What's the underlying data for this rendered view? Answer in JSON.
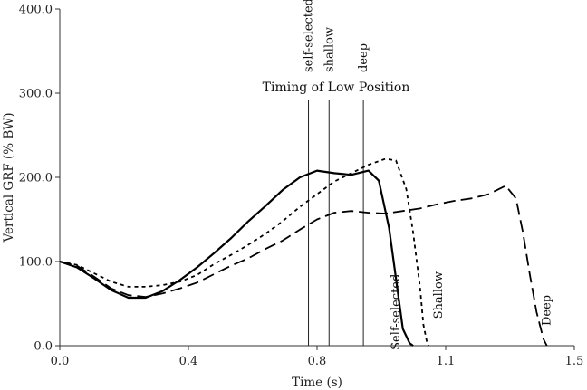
{
  "chart_data": {
    "type": "line",
    "title": "",
    "xlabel": "Time (s)",
    "ylabel": "Vertical GRF (% BW)",
    "xlim": [
      0.0,
      1.5
    ],
    "ylim": [
      0.0,
      400.0
    ],
    "x_ticks": [
      {
        "value": 0.0,
        "label": "0.0"
      },
      {
        "value": 0.375,
        "label": "0.4"
      },
      {
        "value": 0.75,
        "label": "0.8"
      },
      {
        "value": 1.125,
        "label": "1.1"
      },
      {
        "value": 1.5,
        "label": "1.5"
      }
    ],
    "y_ticks": [
      {
        "value": 0,
        "label": "0.0"
      },
      {
        "value": 100,
        "label": "100.0"
      },
      {
        "value": 200,
        "label": "200.0"
      },
      {
        "value": 300,
        "label": "300.0"
      },
      {
        "value": 400,
        "label": "400.0"
      }
    ],
    "vertical_markers_title": "Timing of Low Position",
    "vertical_markers": [
      {
        "name": "self-selected",
        "x": 0.725
      },
      {
        "name": "shallow",
        "x": 0.785
      },
      {
        "name": "deep",
        "x": 0.885
      }
    ],
    "series": [
      {
        "name": "Self-selected",
        "style": "solid",
        "x": [
          0.0,
          0.05,
          0.1,
          0.15,
          0.2,
          0.25,
          0.3,
          0.35,
          0.4,
          0.45,
          0.5,
          0.55,
          0.6,
          0.65,
          0.7,
          0.75,
          0.8,
          0.85,
          0.9,
          0.93,
          0.96,
          0.98,
          1.0,
          1.02,
          1.03
        ],
        "y": [
          100,
          93,
          80,
          66,
          57,
          57,
          65,
          78,
          93,
          110,
          128,
          148,
          166,
          185,
          200,
          208,
          205,
          203,
          208,
          196,
          140,
          80,
          20,
          3,
          0
        ]
      },
      {
        "name": "Shallow",
        "style": "short-dash",
        "x": [
          0.0,
          0.05,
          0.1,
          0.15,
          0.2,
          0.25,
          0.3,
          0.35,
          0.4,
          0.45,
          0.5,
          0.55,
          0.6,
          0.65,
          0.7,
          0.75,
          0.8,
          0.85,
          0.9,
          0.95,
          0.98,
          1.01,
          1.03,
          1.05,
          1.06,
          1.07,
          1.075
        ],
        "y": [
          100,
          96,
          86,
          76,
          70,
          70,
          72,
          76,
          84,
          97,
          108,
          120,
          133,
          148,
          165,
          180,
          195,
          205,
          215,
          222,
          220,
          186,
          135,
          70,
          25,
          5,
          0
        ]
      },
      {
        "name": "Deep",
        "style": "long-dash",
        "x": [
          0.0,
          0.05,
          0.1,
          0.15,
          0.2,
          0.25,
          0.3,
          0.35,
          0.4,
          0.45,
          0.5,
          0.55,
          0.6,
          0.65,
          0.7,
          0.75,
          0.8,
          0.85,
          0.9,
          0.95,
          1.0,
          1.05,
          1.1,
          1.15,
          1.2,
          1.25,
          1.3,
          1.33,
          1.35,
          1.37,
          1.39,
          1.41,
          1.42
        ],
        "y": [
          100,
          95,
          82,
          68,
          60,
          58,
          62,
          68,
          75,
          85,
          95,
          104,
          115,
          125,
          138,
          150,
          158,
          160,
          158,
          157,
          160,
          163,
          168,
          172,
          175,
          180,
          190,
          175,
          135,
          85,
          40,
          8,
          0
        ]
      }
    ],
    "series_labels": [
      {
        "text": "Self-selected",
        "x": 0.99,
        "y": 40
      },
      {
        "text": "Shallow",
        "x": 1.115,
        "y": 60
      },
      {
        "text": "Deep",
        "x": 1.43,
        "y": 42
      }
    ]
  }
}
